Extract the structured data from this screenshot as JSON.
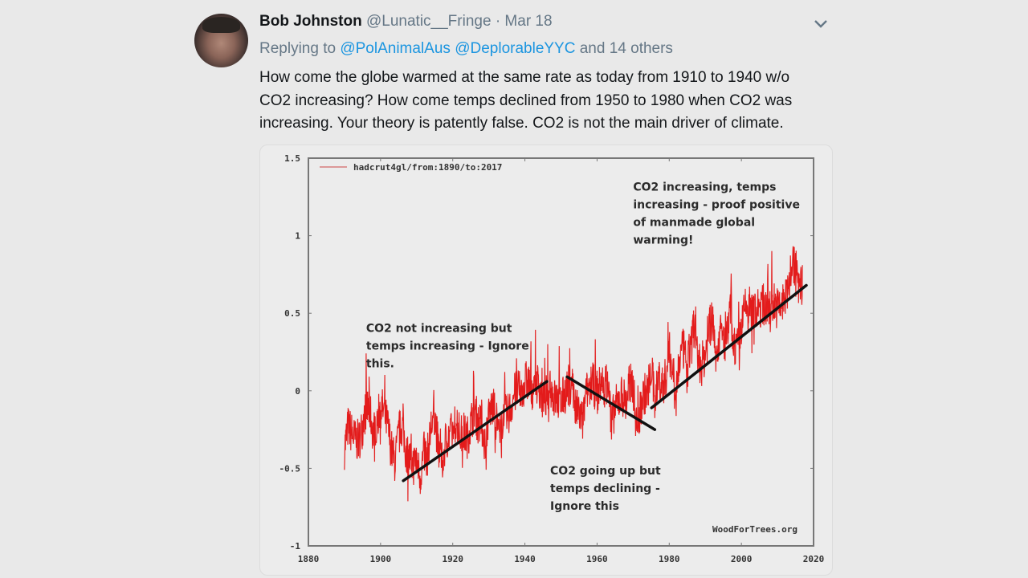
{
  "tweet": {
    "author_name": "Bob Johnston",
    "author_handle": "@Lunatic__Fringe",
    "separator": "·",
    "date": "Mar 18",
    "replying_prefix": "Replying to",
    "mentions": [
      "@PolAnimalAus",
      "@DeplorableYYC"
    ],
    "replying_suffix": "and 14 others",
    "text_lines": [
      "How come the globe warmed at the same rate as today from 1910 to 1940 w/o",
      "CO2 increasing? How come temps declined from 1950 to 1980 when CO2 was",
      "increasing. Your theory is patently false. CO2 is not the main driver of climate."
    ],
    "menu_icon": "chevron-down-icon",
    "avatar_icon": "avatar"
  },
  "colors": {
    "series": "#e31b1b",
    "trend": "#111111",
    "mention": "#1b95e0"
  },
  "chart_data": {
    "type": "line",
    "title": "",
    "legend": [
      "hadcrut4gl/from:1890/to:2017"
    ],
    "legend_position": "top-left",
    "credit": "WoodForTrees.org",
    "xlabel": "",
    "ylabel": "",
    "xlim": [
      1880,
      2020
    ],
    "ylim": [
      -1,
      1.5
    ],
    "xticks": [
      1880,
      1900,
      1920,
      1940,
      1960,
      1980,
      2000,
      2020
    ],
    "xtick_labels": [
      "1880",
      "1900",
      "1920",
      "1940",
      "1960",
      "1980",
      "2000",
      "2020"
    ],
    "yticks": [
      1.5,
      1,
      0.5,
      0,
      -0.5,
      -1
    ],
    "ytick_labels": [
      "1.5",
      "1",
      "0.5",
      "0",
      "-0.5",
      "-1"
    ],
    "grid": false,
    "series": [
      {
        "name": "hadcrut4gl/from:1890/to:2017",
        "x_start": 1890,
        "x_step": 1,
        "values": [
          -0.37,
          -0.23,
          -0.27,
          -0.32,
          -0.32,
          -0.23,
          -0.11,
          -0.12,
          -0.28,
          -0.18,
          -0.1,
          -0.14,
          -0.23,
          -0.38,
          -0.46,
          -0.29,
          -0.22,
          -0.39,
          -0.43,
          -0.48,
          -0.44,
          -0.55,
          -0.4,
          -0.42,
          -0.23,
          -0.15,
          -0.37,
          -0.47,
          -0.33,
          -0.28,
          -0.27,
          -0.18,
          -0.29,
          -0.27,
          -0.3,
          -0.22,
          -0.11,
          -0.21,
          -0.21,
          -0.35,
          -0.15,
          -0.1,
          -0.17,
          -0.3,
          -0.14,
          -0.17,
          -0.12,
          -0.02,
          -0.0,
          -0.02,
          0.06,
          0.06,
          0.01,
          0.06,
          0.03,
          -0.08,
          -0.03,
          0.05,
          -0.05,
          -0.06,
          -0.08,
          -0.02,
          0.03,
          0.09,
          -0.12,
          -0.14,
          -0.2,
          -0.03,
          0.06,
          0.04,
          -0.03,
          0.05,
          0.03,
          0.05,
          -0.2,
          -0.11,
          -0.06,
          -0.02,
          -0.08,
          0.05,
          0.03,
          -0.25,
          -0.11,
          -0.02,
          -0.01,
          0.16,
          -0.07,
          0.1,
          0.03,
          0.08,
          0.25,
          0.13,
          0.04,
          0.22,
          0.27,
          0.12,
          0.34,
          0.43,
          0.19,
          0.17,
          0.24,
          0.4,
          0.45,
          0.23,
          0.38,
          0.33,
          0.33,
          0.53,
          0.3,
          0.27,
          0.41,
          0.53,
          0.55,
          0.53,
          0.5,
          0.53,
          0.56,
          0.54,
          0.51,
          0.58,
          0.53,
          0.55,
          0.58,
          0.66,
          0.84,
          0.79,
          0.68
        ]
      }
    ],
    "trend_lines": [
      {
        "from": [
          1906.3,
          -0.58
        ],
        "to": [
          1946.1,
          0.06
        ]
      },
      {
        "from": [
          1951.7,
          0.09
        ],
        "to": [
          1976.0,
          -0.25
        ]
      },
      {
        "from": [
          1975.1,
          -0.11
        ],
        "to": [
          2018.0,
          0.68
        ]
      }
    ],
    "annotations": [
      {
        "lines": [
          "CO2 not increasing but",
          "temps increasing - Ignore",
          "this."
        ],
        "anchor": [
          1896,
          0.38
        ]
      },
      {
        "lines": [
          "CO2 going up but",
          "temps declining -",
          "Ignore this"
        ],
        "anchor": [
          1947,
          -0.54
        ]
      },
      {
        "lines": [
          "CO2 increasing, temps",
          "increasing - proof positive",
          "of manmade global",
          "warming!"
        ],
        "anchor": [
          1970,
          1.29
        ]
      }
    ]
  }
}
